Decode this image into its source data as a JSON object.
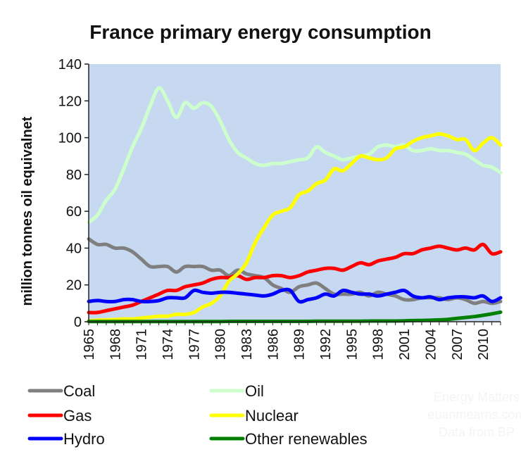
{
  "chart_data": {
    "type": "line",
    "title": "France primary energy consumption",
    "ylabel": "million tonnes oil equivalnet",
    "xlabel": "",
    "ylim": [
      0,
      140
    ],
    "yticks": [
      0,
      20,
      40,
      60,
      80,
      100,
      120,
      140
    ],
    "xlim": [
      1965,
      2012
    ],
    "xtick_labels": [
      "1965",
      "1968",
      "1971",
      "1974",
      "1977",
      "1980",
      "1983",
      "1986",
      "1989",
      "1992",
      "1995",
      "1998",
      "2001",
      "2004",
      "2007",
      "2010"
    ],
    "grid": false,
    "plot_background": "#c6d9f1",
    "legend_position": "bottom",
    "credits": [
      "Energy Matters",
      "euanmearns.com",
      "Data from BP"
    ],
    "x": [
      1965,
      1966,
      1967,
      1968,
      1969,
      1970,
      1971,
      1972,
      1973,
      1974,
      1975,
      1976,
      1977,
      1978,
      1979,
      1980,
      1981,
      1982,
      1983,
      1984,
      1985,
      1986,
      1987,
      1988,
      1989,
      1990,
      1991,
      1992,
      1993,
      1994,
      1995,
      1996,
      1997,
      1998,
      1999,
      2000,
      2001,
      2002,
      2003,
      2004,
      2005,
      2006,
      2007,
      2008,
      2009,
      2010,
      2011,
      2012
    ],
    "series": [
      {
        "name": "Coal",
        "color": "#7f7f7f",
        "values": [
          45,
          42,
          42,
          40,
          40,
          38,
          34,
          30,
          30,
          30,
          27,
          30,
          30,
          30,
          28,
          28,
          25,
          28,
          26,
          25,
          24,
          20,
          18,
          16,
          19,
          20,
          21,
          18,
          15,
          15,
          15,
          16,
          14,
          16,
          15,
          14,
          12,
          12,
          13,
          13,
          13,
          12,
          13,
          12,
          10,
          11,
          10,
          11
        ]
      },
      {
        "name": "Oil",
        "color": "#ccffcc",
        "values": [
          54,
          58,
          66,
          72,
          83,
          95,
          105,
          117,
          127,
          120,
          111,
          119,
          116,
          119,
          117,
          109,
          99,
          92,
          89,
          86,
          85,
          86,
          86,
          87,
          88,
          89,
          95,
          92,
          90,
          88,
          89,
          90,
          91,
          95,
          96,
          95,
          96,
          93,
          93,
          94,
          93,
          93,
          92,
          91,
          88,
          85,
          84,
          81
        ]
      },
      {
        "name": "Gas",
        "color": "#ff0000",
        "values": [
          5,
          5,
          6,
          7,
          8,
          9,
          11,
          13,
          15,
          17,
          17,
          19,
          20,
          21,
          23,
          24,
          24,
          25,
          23,
          24,
          24,
          25,
          25,
          24,
          25,
          27,
          28,
          29,
          29,
          28,
          30,
          32,
          31,
          33,
          34,
          35,
          37,
          37,
          39,
          40,
          41,
          40,
          39,
          40,
          39,
          42,
          37,
          38
        ]
      },
      {
        "name": "Nuclear",
        "color": "#ffff00",
        "values": [
          0.5,
          0.8,
          1,
          1.2,
          1.5,
          1.5,
          2,
          2.5,
          3,
          3,
          4,
          4,
          5,
          8,
          10,
          14,
          22,
          26,
          32,
          43,
          51,
          58,
          60,
          62,
          69,
          71,
          75,
          77,
          83,
          82,
          86,
          90,
          89,
          88,
          89,
          94,
          95,
          98,
          100,
          101,
          102,
          101,
          99,
          99,
          93,
          97,
          100,
          96
        ]
      },
      {
        "name": "Hydro",
        "color": "#0000ff",
        "values": [
          11,
          11.5,
          11,
          11,
          12,
          12,
          11,
          11,
          11.5,
          13,
          13,
          13,
          17,
          16,
          15.5,
          16,
          16,
          15.5,
          15,
          14.5,
          14,
          15,
          17,
          17,
          11,
          12,
          13,
          15,
          14,
          17,
          16,
          15,
          15,
          14,
          15,
          16,
          17,
          14,
          13,
          13.5,
          12,
          13,
          13.5,
          13.5,
          13,
          14,
          11,
          13
        ]
      },
      {
        "name": "Other renewables",
        "color": "#008000",
        "values": [
          0.1,
          0.1,
          0.1,
          0.1,
          0.1,
          0.1,
          0.1,
          0.1,
          0.1,
          0.1,
          0.1,
          0.1,
          0.1,
          0.1,
          0.1,
          0.1,
          0.2,
          0.2,
          0.2,
          0.2,
          0.2,
          0.2,
          0.2,
          0.2,
          0.2,
          0.2,
          0.3,
          0.3,
          0.3,
          0.3,
          0.3,
          0.3,
          0.4,
          0.4,
          0.4,
          0.4,
          0.5,
          0.6,
          0.7,
          0.8,
          1.0,
          1.3,
          1.8,
          2.3,
          2.8,
          3.5,
          4.3,
          5.2
        ]
      }
    ]
  }
}
